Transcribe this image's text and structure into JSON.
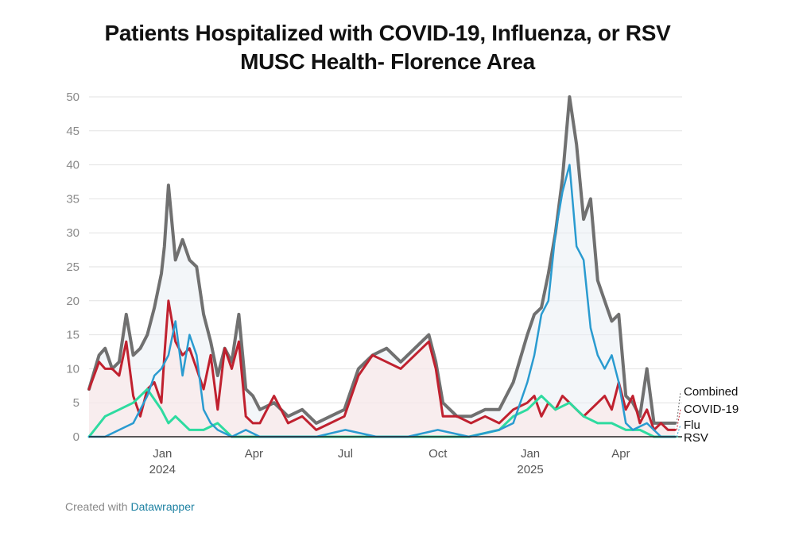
{
  "title_line_1": "Patients Hospitalized with COVID-19, Influenza, or RSV",
  "title_line_2": "MUSC Health- Florence Area",
  "footer": {
    "prefix": "Created with",
    "link": "Datawrapper"
  },
  "colors": {
    "Combined": "#707070",
    "COVID-19": "#c0212f",
    "Flu": "#2a9bd0",
    "RSV": "#2edba0",
    "grid": "#e2e2e2",
    "axis": "#222222"
  },
  "chart_data": {
    "type": "line",
    "title": "Patients Hospitalized with COVID-19, Influenza, or RSV",
    "subtitle": "MUSC Health- Florence Area",
    "ylim": [
      0,
      50
    ],
    "y_ticks": [
      0,
      5,
      10,
      15,
      20,
      25,
      30,
      35,
      40,
      45,
      50
    ],
    "x_ticks": [
      {
        "date": "2024-01-01",
        "label": "Jan",
        "year": "2024"
      },
      {
        "date": "2024-04-01",
        "label": "Apr",
        "year": ""
      },
      {
        "date": "2024-07-01",
        "label": "Jul",
        "year": ""
      },
      {
        "date": "2024-10-01",
        "label": "Oct",
        "year": ""
      },
      {
        "date": "2025-01-01",
        "label": "Jan",
        "year": "2025"
      },
      {
        "date": "2025-04-01",
        "label": "Apr",
        "year": ""
      }
    ],
    "x_range": [
      "2023-10-20",
      "2025-06-01"
    ],
    "grid": true,
    "legend_placement": "right end of lines",
    "series": [
      {
        "name": "Combined",
        "x": [
          "2023-10-20",
          "2023-10-30",
          "2023-11-05",
          "2023-11-12",
          "2023-11-19",
          "2023-11-26",
          "2023-12-03",
          "2023-12-10",
          "2023-12-17",
          "2023-12-24",
          "2023-12-31",
          "2024-01-03",
          "2024-01-07",
          "2024-01-14",
          "2024-01-21",
          "2024-01-28",
          "2024-02-04",
          "2024-02-11",
          "2024-02-18",
          "2024-02-25",
          "2024-03-03",
          "2024-03-10",
          "2024-03-17",
          "2024-03-24",
          "2024-03-31",
          "2024-04-07",
          "2024-04-21",
          "2024-05-05",
          "2024-05-19",
          "2024-06-02",
          "2024-06-16",
          "2024-06-30",
          "2024-07-14",
          "2024-07-28",
          "2024-08-11",
          "2024-08-25",
          "2024-09-08",
          "2024-09-22",
          "2024-09-29",
          "2024-10-06",
          "2024-10-20",
          "2024-11-03",
          "2024-11-17",
          "2024-12-01",
          "2024-12-15",
          "2024-12-29",
          "2025-01-05",
          "2025-01-12",
          "2025-01-19",
          "2025-01-26",
          "2025-02-02",
          "2025-02-09",
          "2025-02-16",
          "2025-02-23",
          "2025-03-02",
          "2025-03-09",
          "2025-03-16",
          "2025-03-23",
          "2025-03-30",
          "2025-04-06",
          "2025-04-13",
          "2025-04-20",
          "2025-04-27",
          "2025-05-04",
          "2025-05-11",
          "2025-05-18",
          "2025-05-25"
        ],
        "values": [
          7,
          12,
          13,
          10,
          11,
          18,
          12,
          13,
          15,
          19,
          24,
          28,
          37,
          26,
          29,
          26,
          25,
          18,
          14,
          9,
          13,
          11,
          18,
          7,
          6,
          4,
          5,
          3,
          4,
          2,
          3,
          4,
          10,
          12,
          13,
          11,
          13,
          15,
          11,
          5,
          3,
          3,
          4,
          4,
          8,
          15,
          18,
          19,
          24,
          30,
          38,
          50,
          43,
          32,
          35,
          23,
          20,
          17,
          18,
          6,
          5,
          3,
          10,
          2,
          2,
          2,
          2
        ]
      },
      {
        "name": "COVID-19",
        "x": [
          "2023-10-20",
          "2023-10-30",
          "2023-11-05",
          "2023-11-12",
          "2023-11-19",
          "2023-11-26",
          "2023-12-03",
          "2023-12-10",
          "2023-12-17",
          "2023-12-24",
          "2023-12-31",
          "2024-01-03",
          "2024-01-07",
          "2024-01-14",
          "2024-01-21",
          "2024-01-28",
          "2024-02-04",
          "2024-02-11",
          "2024-02-18",
          "2024-02-25",
          "2024-03-03",
          "2024-03-10",
          "2024-03-17",
          "2024-03-24",
          "2024-03-31",
          "2024-04-07",
          "2024-04-21",
          "2024-05-05",
          "2024-05-19",
          "2024-06-02",
          "2024-06-16",
          "2024-06-30",
          "2024-07-14",
          "2024-07-28",
          "2024-08-11",
          "2024-08-25",
          "2024-09-08",
          "2024-09-22",
          "2024-09-29",
          "2024-10-06",
          "2024-10-20",
          "2024-11-03",
          "2024-11-17",
          "2024-12-01",
          "2024-12-15",
          "2024-12-29",
          "2025-01-05",
          "2025-01-12",
          "2025-01-19",
          "2025-01-26",
          "2025-02-02",
          "2025-02-09",
          "2025-02-16",
          "2025-02-23",
          "2025-03-02",
          "2025-03-09",
          "2025-03-16",
          "2025-03-23",
          "2025-03-30",
          "2025-04-06",
          "2025-04-13",
          "2025-04-20",
          "2025-04-27",
          "2025-05-04",
          "2025-05-11",
          "2025-05-18",
          "2025-05-25"
        ],
        "values": [
          7,
          11,
          10,
          10,
          9,
          14,
          6,
          3,
          7,
          8,
          5,
          12,
          20,
          14,
          12,
          13,
          10,
          7,
          12,
          4,
          13,
          10,
          14,
          3,
          2,
          2,
          6,
          2,
          3,
          1,
          2,
          3,
          9,
          12,
          11,
          10,
          12,
          14,
          10,
          3,
          3,
          2,
          3,
          2,
          4,
          5,
          6,
          3,
          5,
          4,
          6,
          5,
          4,
          3,
          4,
          5,
          6,
          4,
          8,
          4,
          6,
          2,
          4,
          1,
          2,
          1,
          1
        ]
      },
      {
        "name": "Flu",
        "x": [
          "2023-10-20",
          "2023-11-05",
          "2023-11-19",
          "2023-12-03",
          "2023-12-17",
          "2023-12-24",
          "2023-12-31",
          "2024-01-07",
          "2024-01-14",
          "2024-01-21",
          "2024-01-28",
          "2024-02-04",
          "2024-02-11",
          "2024-02-18",
          "2024-02-25",
          "2024-03-10",
          "2024-03-24",
          "2024-04-07",
          "2024-05-05",
          "2024-06-02",
          "2024-07-01",
          "2024-08-01",
          "2024-09-01",
          "2024-10-01",
          "2024-11-01",
          "2024-12-01",
          "2024-12-15",
          "2024-12-29",
          "2025-01-05",
          "2025-01-12",
          "2025-01-19",
          "2025-01-26",
          "2025-02-02",
          "2025-02-09",
          "2025-02-16",
          "2025-02-23",
          "2025-03-02",
          "2025-03-09",
          "2025-03-16",
          "2025-03-23",
          "2025-03-30",
          "2025-04-06",
          "2025-04-13",
          "2025-04-27",
          "2025-05-11",
          "2025-05-25"
        ],
        "values": [
          0,
          0,
          1,
          2,
          6,
          9,
          10,
          12,
          17,
          9,
          15,
          12,
          4,
          2,
          1,
          0,
          1,
          0,
          0,
          0,
          1,
          0,
          0,
          1,
          0,
          1,
          2,
          8,
          12,
          18,
          20,
          30,
          36,
          40,
          28,
          26,
          16,
          12,
          10,
          12,
          8,
          2,
          1,
          2,
          0,
          0
        ]
      },
      {
        "name": "RSV",
        "x": [
          "2023-10-20",
          "2023-11-05",
          "2023-11-19",
          "2023-12-03",
          "2023-12-17",
          "2023-12-31",
          "2024-01-07",
          "2024-01-14",
          "2024-01-28",
          "2024-02-11",
          "2024-02-25",
          "2024-03-10",
          "2024-04-07",
          "2024-05-05",
          "2024-06-02",
          "2024-07-01",
          "2024-08-01",
          "2024-09-01",
          "2024-10-01",
          "2024-11-01",
          "2024-12-01",
          "2024-12-15",
          "2024-12-29",
          "2025-01-12",
          "2025-01-26",
          "2025-02-09",
          "2025-02-23",
          "2025-03-09",
          "2025-03-23",
          "2025-04-06",
          "2025-04-20",
          "2025-05-04",
          "2025-05-18",
          "2025-05-25"
        ],
        "values": [
          0,
          3,
          4,
          5,
          7,
          4,
          2,
          3,
          1,
          1,
          2,
          0,
          0,
          0,
          0,
          0,
          0,
          0,
          0,
          0,
          1,
          3,
          4,
          6,
          4,
          5,
          3,
          2,
          2,
          1,
          1,
          0,
          0,
          0
        ]
      }
    ],
    "legend_labels": [
      "Combined",
      "COVID-19",
      "Flu",
      "RSV"
    ]
  }
}
